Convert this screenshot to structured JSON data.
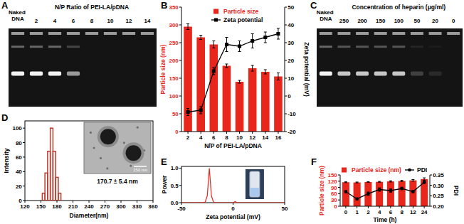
{
  "chart_data": [
    {
      "panel": "A",
      "type": "gel",
      "title": "N/P Ratio of PEI-LA/pDNA",
      "categories": [
        "Naked DNA",
        "2",
        "4",
        "6",
        "8",
        "10",
        "12",
        "14"
      ],
      "values": [
        1,
        1,
        1,
        0.6,
        0,
        0,
        0,
        0
      ]
    },
    {
      "panel": "B",
      "type": "bar",
      "x_label": "N/P of PEI-LA/pDNA",
      "y_label": "Particle size (nm)",
      "y2_label": "Zeta potential (mV)",
      "categories": [
        "2",
        "4",
        "6",
        "8",
        "10",
        "12",
        "14",
        "16"
      ],
      "ylim": [
        0,
        350
      ],
      "yticks": [
        0,
        50,
        100,
        150,
        200,
        250,
        300,
        350
      ],
      "y2lim": [
        -20,
        50
      ],
      "y2ticks": [
        -20,
        -10,
        0,
        10,
        20,
        30,
        40,
        50
      ],
      "legend": "top",
      "series": [
        {
          "name": "Particle size",
          "type": "bar",
          "color": "#e8261c",
          "values": [
            295,
            265,
            245,
            185,
            140,
            178,
            168,
            155
          ],
          "errors": [
            8,
            6,
            10,
            5,
            4,
            8,
            6,
            10
          ]
        },
        {
          "name": "Zeta potential",
          "type": "line",
          "axis": "y2",
          "color": "#000000",
          "marker": "square",
          "values": [
            -9,
            -8,
            14,
            29,
            28,
            31,
            33,
            35
          ],
          "errors": [
            2,
            2,
            2,
            4,
            3,
            4,
            3,
            3
          ]
        }
      ]
    },
    {
      "panel": "C",
      "type": "gel",
      "title": "Concentration of heparin (μg/ml)",
      "categories": [
        "Naked DNA",
        "250",
        "200",
        "150",
        "100",
        "50",
        "20",
        "0"
      ],
      "values": [
        1,
        0.8,
        0.8,
        0.8,
        0.8,
        0.2,
        0.1,
        0
      ]
    },
    {
      "panel": "D",
      "type": "histogram",
      "x_label": "Diameter(nm)",
      "y_label": "Intensity",
      "bins": [
        152.5,
        157.5,
        162.5,
        167.5,
        172.5,
        177.5,
        182.5,
        187.5
      ],
      "values": [
        10,
        38,
        68,
        100,
        68,
        32,
        10
      ],
      "color": "#c0392b",
      "xlim": [
        120,
        360
      ],
      "xticks": [
        120,
        150,
        180,
        210,
        240,
        270,
        300,
        330,
        360
      ],
      "ylim": [
        0,
        110
      ],
      "yticks": [
        0,
        20,
        40,
        60,
        80,
        100
      ],
      "annotation": "170.7 ± 5.4 nm",
      "scale_bar": "150 nm"
    },
    {
      "panel": "E",
      "type": "line",
      "x_label": "Zeta potential (mV)",
      "y_label": "Power",
      "x": [
        -50,
        -40,
        -30,
        -27,
        -25,
        -24,
        -23,
        -22,
        -21,
        -19,
        -17,
        -10,
        0,
        2,
        4,
        10,
        20,
        30,
        40,
        50
      ],
      "values": [
        0,
        0,
        0,
        0.02,
        0.2,
        0.6,
        1.0,
        0.6,
        0.2,
        0.02,
        0,
        0,
        0,
        0.03,
        0,
        0,
        0,
        0,
        0,
        0
      ],
      "color": "#e8261c",
      "xlim": [
        -50,
        50
      ],
      "xticks": [
        -50,
        0,
        50
      ],
      "ylim": [
        0,
        1.05
      ],
      "yticks": [
        {
          "value": 0,
          "label": "0.0"
        },
        {
          "value": 0.5,
          "label": "0.5"
        },
        {
          "value": 1,
          "label": "1.0"
        }
      ]
    },
    {
      "panel": "F",
      "type": "bar",
      "x_label": "Time (h)",
      "y_label": "Particle size (nm)",
      "y2_label": "PDI",
      "categories": [
        "0",
        "1",
        "2",
        "4",
        "6",
        "8",
        "12",
        "24"
      ],
      "ylim": [
        0,
        150
      ],
      "yticks": [
        0,
        30,
        60,
        90,
        120,
        150
      ],
      "y2lim": [
        0.2,
        0.35
      ],
      "y2ticks": [
        {
          "value": 0.2,
          "label": "0.20"
        },
        {
          "value": 0.25,
          "label": "0.25"
        },
        {
          "value": 0.3,
          "label": "0.30"
        },
        {
          "value": 0.35,
          "label": "0.35"
        }
      ],
      "legend": "top",
      "series": [
        {
          "name": "Particle size (nm)",
          "type": "bar",
          "color": "#e8261c",
          "values": [
            115,
            114,
            116,
            117,
            119,
            121,
            124,
            130
          ],
          "errors": [
            2,
            2,
            2,
            2,
            3,
            3,
            4,
            6
          ]
        },
        {
          "name": "PDI",
          "type": "line",
          "axis": "y2",
          "color": "#000000",
          "marker": "circle",
          "values": [
            0.27,
            0.235,
            0.26,
            0.28,
            0.275,
            0.285,
            0.27,
            0.315
          ],
          "errors": [
            0.005,
            0.005,
            0.008,
            0.008,
            0.008,
            0.006,
            0.005,
            0.006
          ]
        }
      ]
    }
  ]
}
